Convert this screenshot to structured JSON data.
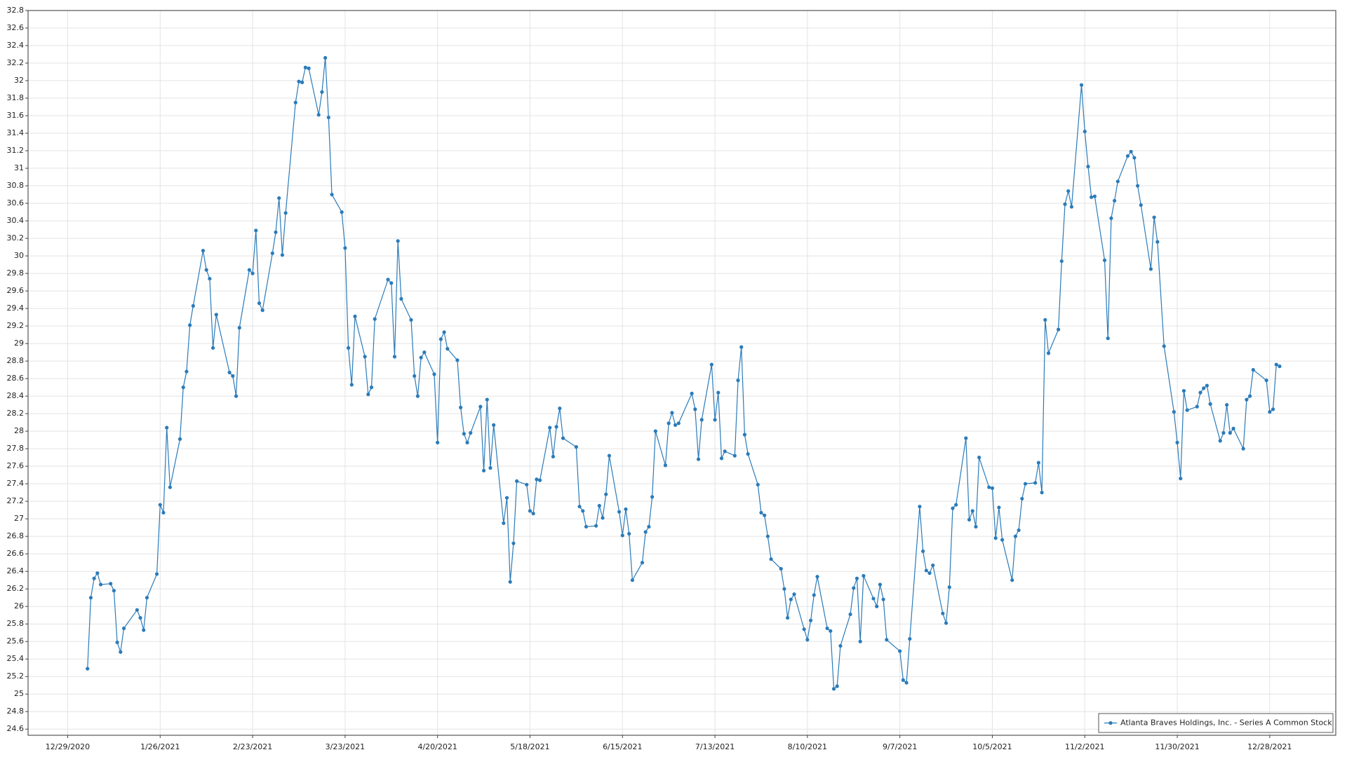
{
  "chart_data": {
    "type": "line",
    "x": [
      "1/4/2021",
      "1/5/2021",
      "1/6/2021",
      "1/7/2021",
      "1/8/2021",
      "1/11/2021",
      "1/12/2021",
      "1/13/2021",
      "1/14/2021",
      "1/15/2021",
      "1/19/2021",
      "1/20/2021",
      "1/21/2021",
      "1/22/2021",
      "1/25/2021",
      "1/26/2021",
      "1/27/2021",
      "1/28/2021",
      "1/29/2021",
      "2/1/2021",
      "2/2/2021",
      "2/3/2021",
      "2/4/2021",
      "2/5/2021",
      "2/8/2021",
      "2/9/2021",
      "2/10/2021",
      "2/11/2021",
      "2/12/2021",
      "2/16/2021",
      "2/17/2021",
      "2/18/2021",
      "2/19/2021",
      "2/22/2021",
      "2/23/2021",
      "2/24/2021",
      "2/25/2021",
      "2/26/2021",
      "3/1/2021",
      "3/2/2021",
      "3/3/2021",
      "3/4/2021",
      "3/5/2021",
      "3/8/2021",
      "3/9/2021",
      "3/10/2021",
      "3/11/2021",
      "3/12/2021",
      "3/15/2021",
      "3/16/2021",
      "3/17/2021",
      "3/18/2021",
      "3/19/2021",
      "3/22/2021",
      "3/23/2021",
      "3/24/2021",
      "3/25/2021",
      "3/26/2021",
      "3/29/2021",
      "3/30/2021",
      "3/31/2021",
      "4/1/2021",
      "4/5/2021",
      "4/6/2021",
      "4/7/2021",
      "4/8/2021",
      "4/9/2021",
      "4/12/2021",
      "4/13/2021",
      "4/14/2021",
      "4/15/2021",
      "4/16/2021",
      "4/19/2021",
      "4/20/2021",
      "4/21/2021",
      "4/22/2021",
      "4/23/2021",
      "4/26/2021",
      "4/27/2021",
      "4/28/2021",
      "4/29/2021",
      "4/30/2021",
      "5/3/2021",
      "5/4/2021",
      "5/5/2021",
      "5/6/2021",
      "5/7/2021",
      "5/10/2021",
      "5/11/2021",
      "5/12/2021",
      "5/13/2021",
      "5/14/2021",
      "5/17/2021",
      "5/18/2021",
      "5/19/2021",
      "5/20/2021",
      "5/21/2021",
      "5/24/2021",
      "5/25/2021",
      "5/26/2021",
      "5/27/2021",
      "5/28/2021",
      "6/1/2021",
      "6/2/2021",
      "6/3/2021",
      "6/4/2021",
      "6/7/2021",
      "6/8/2021",
      "6/9/2021",
      "6/10/2021",
      "6/11/2021",
      "6/14/2021",
      "6/15/2021",
      "6/16/2021",
      "6/17/2021",
      "6/18/2021",
      "6/21/2021",
      "6/22/2021",
      "6/23/2021",
      "6/24/2021",
      "6/25/2021",
      "6/28/2021",
      "6/29/2021",
      "6/30/2021",
      "7/1/2021",
      "7/2/2021",
      "7/6/2021",
      "7/7/2021",
      "7/8/2021",
      "7/9/2021",
      "7/12/2021",
      "7/13/2021",
      "7/14/2021",
      "7/15/2021",
      "7/16/2021",
      "7/19/2021",
      "7/20/2021",
      "7/21/2021",
      "7/22/2021",
      "7/23/2021",
      "7/26/2021",
      "7/27/2021",
      "7/28/2021",
      "7/29/2021",
      "7/30/2021",
      "8/2/2021",
      "8/3/2021",
      "8/4/2021",
      "8/5/2021",
      "8/6/2021",
      "8/9/2021",
      "8/10/2021",
      "8/11/2021",
      "8/12/2021",
      "8/13/2021",
      "8/16/2021",
      "8/17/2021",
      "8/18/2021",
      "8/19/2021",
      "8/20/2021",
      "8/23/2021",
      "8/24/2021",
      "8/25/2021",
      "8/26/2021",
      "8/27/2021",
      "8/30/2021",
      "8/31/2021",
      "9/1/2021",
      "9/2/2021",
      "9/3/2021",
      "9/7/2021",
      "9/8/2021",
      "9/9/2021",
      "9/10/2021",
      "9/13/2021",
      "9/14/2021",
      "9/15/2021",
      "9/16/2021",
      "9/17/2021",
      "9/20/2021",
      "9/21/2021",
      "9/22/2021",
      "9/23/2021",
      "9/24/2021",
      "9/27/2021",
      "9/28/2021",
      "9/29/2021",
      "9/30/2021",
      "10/1/2021",
      "10/4/2021",
      "10/5/2021",
      "10/6/2021",
      "10/7/2021",
      "10/8/2021",
      "10/11/2021",
      "10/12/2021",
      "10/13/2021",
      "10/14/2021",
      "10/15/2021",
      "10/18/2021",
      "10/19/2021",
      "10/20/2021",
      "10/21/2021",
      "10/22/2021",
      "10/25/2021",
      "10/26/2021",
      "10/27/2021",
      "10/28/2021",
      "10/29/2021",
      "11/1/2021",
      "11/2/2021",
      "11/3/2021",
      "11/4/2021",
      "11/5/2021",
      "11/8/2021",
      "11/9/2021",
      "11/10/2021",
      "11/11/2021",
      "11/12/2021",
      "11/15/2021",
      "11/16/2021",
      "11/17/2021",
      "11/18/2021",
      "11/19/2021",
      "11/22/2021",
      "11/23/2021",
      "11/24/2021",
      "11/26/2021",
      "11/29/2021",
      "11/30/2021",
      "12/1/2021",
      "12/2/2021",
      "12/3/2021",
      "12/6/2021",
      "12/7/2021",
      "12/8/2021",
      "12/9/2021",
      "12/10/2021",
      "12/13/2021",
      "12/14/2021",
      "12/15/2021",
      "12/16/2021",
      "12/17/2021",
      "12/20/2021",
      "12/21/2021",
      "12/22/2021",
      "12/23/2021",
      "12/27/2021",
      "12/28/2021",
      "12/29/2021",
      "12/30/2021",
      "12/31/2021"
    ],
    "series": [
      {
        "name": "Atlanta Braves Holdings, Inc. - Series A Common Stock",
        "color": "#2b7bb9",
        "values": [
          25.29,
          26.1,
          26.32,
          26.38,
          26.25,
          26.26,
          26.18,
          25.59,
          25.48,
          25.75,
          25.96,
          25.87,
          25.73,
          26.1,
          26.37,
          27.16,
          27.07,
          28.04,
          27.36,
          27.91,
          28.5,
          28.68,
          29.21,
          29.43,
          30.06,
          29.84,
          29.74,
          28.95,
          29.33,
          28.67,
          28.63,
          28.4,
          29.18,
          29.84,
          29.8,
          30.29,
          29.46,
          29.38,
          30.03,
          30.27,
          30.66,
          30.01,
          30.49,
          31.75,
          31.99,
          31.98,
          32.15,
          32.14,
          31.61,
          31.87,
          32.26,
          31.58,
          30.7,
          30.5,
          30.09,
          28.95,
          28.53,
          29.31,
          28.85,
          28.42,
          28.5,
          29.28,
          29.73,
          29.69,
          28.85,
          30.17,
          29.51,
          29.27,
          28.63,
          28.4,
          28.84,
          28.9,
          28.65,
          27.87,
          29.05,
          29.13,
          28.94,
          28.81,
          28.27,
          27.97,
          27.87,
          27.98,
          28.28,
          27.55,
          28.36,
          27.58,
          28.07,
          26.95,
          27.24,
          26.28,
          26.72,
          27.43,
          27.39,
          27.09,
          27.06,
          27.45,
          27.44,
          28.04,
          27.71,
          28.05,
          28.26,
          27.92,
          27.82,
          27.14,
          27.09,
          26.91,
          26.92,
          27.15,
          27.01,
          27.28,
          27.72,
          27.08,
          26.81,
          27.11,
          26.83,
          26.3,
          26.5,
          26.85,
          26.91,
          27.25,
          28.0,
          27.61,
          28.09,
          28.21,
          28.07,
          28.09,
          28.43,
          28.25,
          27.68,
          28.13,
          28.76,
          28.13,
          28.44,
          27.69,
          27.77,
          27.72,
          28.58,
          28.96,
          27.96,
          27.74,
          27.39,
          27.07,
          27.04,
          26.8,
          26.54,
          26.43,
          26.2,
          25.87,
          26.08,
          26.14,
          25.74,
          25.62,
          25.84,
          26.13,
          26.34,
          25.75,
          25.72,
          25.06,
          25.09,
          25.55,
          25.91,
          26.21,
          26.32,
          25.6,
          26.35,
          26.09,
          26.0,
          26.25,
          26.08,
          25.62,
          25.49,
          25.16,
          25.13,
          25.63,
          27.14,
          26.63,
          26.41,
          26.38,
          26.47,
          25.92,
          25.81,
          26.22,
          27.12,
          27.16,
          27.92,
          26.99,
          27.09,
          26.91,
          27.7,
          27.36,
          27.35,
          26.78,
          27.13,
          26.76,
          26.3,
          26.8,
          26.87,
          27.23,
          27.4,
          27.41,
          27.64,
          27.3,
          29.27,
          28.89,
          29.16,
          29.94,
          30.59,
          30.74,
          30.56,
          31.95,
          31.42,
          31.02,
          30.67,
          30.68,
          29.95,
          29.06,
          30.43,
          30.63,
          30.85,
          31.14,
          31.19,
          31.12,
          30.8,
          30.58,
          29.85,
          30.44,
          30.16,
          28.97,
          28.22,
          27.87,
          27.46,
          28.46,
          28.24,
          28.28,
          28.44,
          28.49,
          28.52,
          28.31,
          27.89,
          27.98,
          28.3,
          27.98,
          28.03,
          27.8,
          28.36,
          28.4,
          28.7,
          28.58,
          28.22,
          28.25,
          28.76,
          28.74
        ]
      }
    ],
    "xlim": [
      "12/17/2020",
      "1/17/2022"
    ],
    "xticks": [
      "12/29/2020",
      "1/26/2021",
      "2/23/2021",
      "3/23/2021",
      "4/20/2021",
      "5/18/2021",
      "6/15/2021",
      "7/13/2021",
      "8/10/2021",
      "9/7/2021",
      "10/5/2021",
      "11/2/2021",
      "11/30/2021",
      "12/28/2021"
    ],
    "ylim": [
      24.53,
      32.8
    ],
    "yticks": [
      24.6,
      24.8,
      25,
      25.2,
      25.4,
      25.6,
      25.8,
      26,
      26.2,
      26.4,
      26.6,
      26.8,
      27,
      27.2,
      27.4,
      27.6,
      27.8,
      28,
      28.2,
      28.4,
      28.6,
      28.8,
      29,
      29.2,
      29.4,
      29.6,
      29.8,
      30,
      30.2,
      30.4,
      30.6,
      30.8,
      31,
      31.2,
      31.4,
      31.6,
      31.8,
      32,
      32.2,
      32.4,
      32.6,
      32.8
    ],
    "grid": true,
    "markers": true,
    "legend": "lower right"
  }
}
